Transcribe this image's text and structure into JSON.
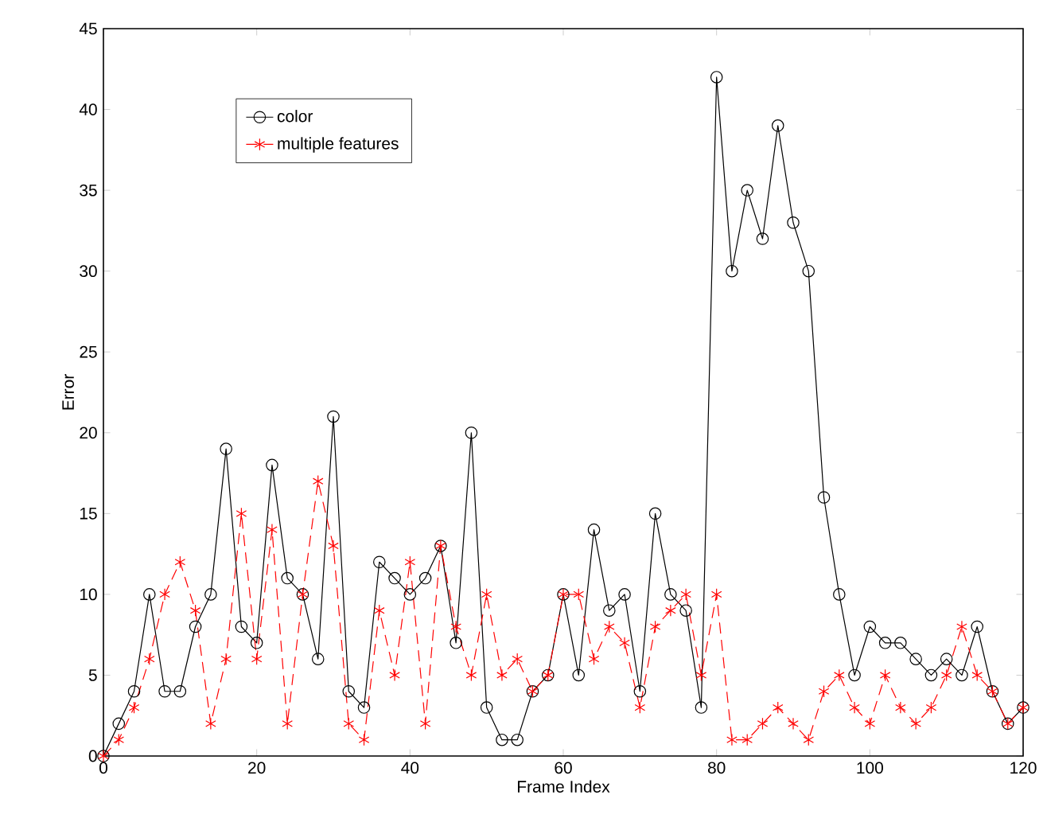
{
  "chart_data": {
    "type": "line",
    "xlabel": "Frame Index",
    "ylabel": "Error",
    "x": [
      0,
      2,
      4,
      6,
      8,
      10,
      12,
      14,
      16,
      18,
      20,
      22,
      24,
      26,
      28,
      30,
      32,
      34,
      36,
      38,
      40,
      42,
      44,
      46,
      48,
      50,
      52,
      54,
      56,
      58,
      60,
      62,
      64,
      66,
      68,
      70,
      72,
      74,
      76,
      78,
      80,
      82,
      84,
      86,
      88,
      90,
      92,
      94,
      96,
      98,
      100,
      102,
      104,
      106,
      108,
      110,
      112,
      114,
      116,
      118,
      120
    ],
    "series": [
      {
        "name": "color",
        "color": "#000000",
        "marker": "circle",
        "line_style": "solid",
        "values": [
          0,
          2,
          4,
          10,
          4,
          4,
          8,
          10,
          19,
          8,
          7,
          18,
          11,
          10,
          6,
          21,
          4,
          3,
          12,
          11,
          10,
          11,
          13,
          7,
          20,
          3,
          1,
          1,
          4,
          5,
          10,
          5,
          14,
          9,
          10,
          4,
          15,
          10,
          9,
          3,
          42,
          30,
          35,
          32,
          39,
          33,
          30,
          16,
          10,
          5,
          8,
          7,
          7,
          6,
          5,
          6,
          5,
          8,
          4,
          2,
          3
        ]
      },
      {
        "name": "multiple features",
        "color": "#ff0000",
        "marker": "cross",
        "line_style": "dashed",
        "values": [
          0,
          1,
          3,
          6,
          10,
          12,
          9,
          2,
          6,
          15,
          6,
          14,
          2,
          10,
          17,
          13,
          2,
          1,
          9,
          5,
          12,
          2,
          13,
          8,
          5,
          10,
          5,
          6,
          4,
          5,
          10,
          10,
          6,
          8,
          7,
          3,
          8,
          9,
          10,
          5,
          10,
          1,
          1,
          2,
          3,
          2,
          1,
          4,
          5,
          3,
          2,
          5,
          3,
          2,
          3,
          5,
          8,
          5,
          4,
          2,
          3
        ]
      }
    ],
    "xlim": [
      0,
      120
    ],
    "xticks": [
      0,
      20,
      40,
      60,
      80,
      100,
      120
    ],
    "ylim": [
      0,
      45
    ],
    "yticks": [
      0,
      5,
      10,
      15,
      20,
      25,
      30,
      35,
      40,
      45
    ],
    "grid": false,
    "legend": "top left"
  }
}
